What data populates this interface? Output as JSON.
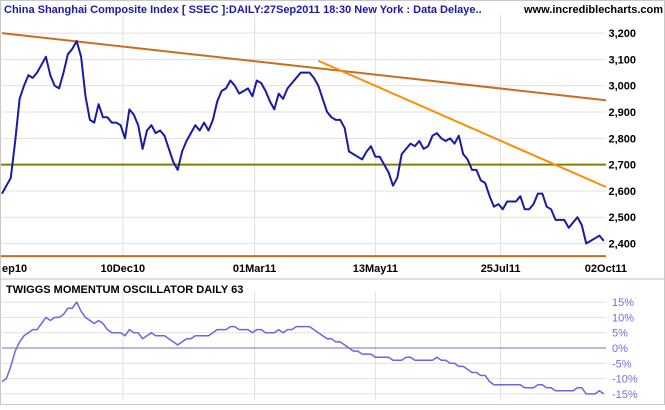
{
  "header": {
    "title": "China Shanghai Composite Index [ SSEC ]:DAILY:27Sep2011 18:30 New York : Data Delaye..",
    "watermark": "www.incrediblecharts.com"
  },
  "chart_data": [
    {
      "type": "line",
      "title": "China Shanghai Composite Index [ SSEC ]:DAILY:27Sep2011 18:30 New York : Data Delaye..",
      "x_tick_labels": [
        "ep10",
        "10Dec10",
        "01Mar11",
        "13May11",
        "25Jul11",
        "02Oct11"
      ],
      "y_tick_labels": [
        "3,200",
        "3,100",
        "3,000",
        "2,900",
        "2,800",
        "2,700",
        "2,600",
        "2,500",
        "2,400"
      ],
      "ylim": [
        2345,
        3250
      ],
      "x_range_trading_days": [
        0,
        275
      ],
      "grid": true,
      "series": [
        {
          "color": "#1a1aa6",
          "x": [
            0,
            2,
            4,
            6,
            8,
            10,
            12,
            14,
            16,
            18,
            20,
            22,
            24,
            26,
            28,
            30,
            32,
            34,
            36,
            38,
            40,
            42,
            44,
            46,
            48,
            50,
            52,
            54,
            56,
            58,
            60,
            62,
            64,
            66,
            68,
            70,
            72,
            74,
            76,
            78,
            80,
            82,
            84,
            86,
            88,
            90,
            92,
            94,
            96,
            98,
            100,
            102,
            104,
            106,
            108,
            110,
            112,
            114,
            116,
            118,
            120,
            122,
            124,
            126,
            128,
            130,
            132,
            134,
            136,
            138,
            140,
            142,
            144,
            146,
            148,
            150,
            152,
            154,
            156,
            158,
            160,
            162,
            164,
            166,
            168,
            170,
            172,
            174,
            176,
            178,
            180,
            182,
            184,
            186,
            188,
            190,
            192,
            194,
            196,
            198,
            200,
            202,
            204,
            206,
            208,
            210,
            212,
            214,
            216,
            218,
            220,
            222,
            224,
            226,
            228,
            230,
            232,
            234,
            236,
            238,
            240,
            242,
            244,
            246,
            248,
            250,
            252,
            254,
            256,
            258,
            260,
            262,
            264,
            266,
            268,
            270,
            272,
            274
          ],
          "values": [
            2590,
            2620,
            2650,
            2790,
            2950,
            3000,
            3040,
            3030,
            3050,
            3080,
            3110,
            3040,
            3000,
            2990,
            3050,
            3120,
            3140,
            3170,
            3110,
            2960,
            2870,
            2860,
            2930,
            2880,
            2880,
            2860,
            2860,
            2850,
            2800,
            2910,
            2890,
            2850,
            2760,
            2830,
            2850,
            2820,
            2830,
            2810,
            2760,
            2710,
            2680,
            2750,
            2790,
            2820,
            2850,
            2830,
            2860,
            2830,
            2870,
            2940,
            2980,
            2990,
            3020,
            3000,
            2970,
            2980,
            2990,
            2960,
            3020,
            3010,
            2980,
            2940,
            2910,
            2970,
            2950,
            2990,
            3010,
            3030,
            3050,
            3050,
            3050,
            3030,
            3000,
            2950,
            2900,
            2880,
            2870,
            2870,
            2840,
            2750,
            2740,
            2730,
            2720,
            2750,
            2770,
            2730,
            2730,
            2700,
            2670,
            2620,
            2650,
            2740,
            2760,
            2780,
            2770,
            2790,
            2760,
            2770,
            2810,
            2820,
            2800,
            2790,
            2800,
            2780,
            2810,
            2740,
            2720,
            2680,
            2680,
            2640,
            2630,
            2580,
            2540,
            2550,
            2530,
            2560,
            2560,
            2560,
            2580,
            2530,
            2530,
            2550,
            2590,
            2590,
            2540,
            2530,
            2490,
            2490,
            2490,
            2460,
            2480,
            2500,
            2470,
            2400,
            2410,
            2420,
            2430,
            2410
          ]
        }
      ],
      "reference_lines": [
        {
          "type": "horizontal",
          "y": 2700,
          "color": "#808000"
        },
        {
          "type": "horizontal",
          "y": 2352,
          "color": "#c86e1e"
        },
        {
          "type": "trend",
          "points": [
            [
              0,
              3200
            ],
            [
              275,
              2945
            ]
          ],
          "color": "#c86e1e"
        },
        {
          "type": "trend",
          "points": [
            [
              144,
              3095
            ],
            [
              275,
              2615
            ]
          ],
          "color": "#ff8c00"
        }
      ]
    },
    {
      "type": "line",
      "title": "TWIGGS MOMENTUM OSCILLATOR DAILY 63",
      "y_tick_labels": [
        "15%",
        "10%",
        "5%",
        "0%",
        "-5%",
        "-10%",
        "-15%"
      ],
      "ylim": [
        -17,
        17
      ],
      "grid": true,
      "series": [
        {
          "color": "#6868e0",
          "x": [
            0,
            2,
            4,
            6,
            8,
            10,
            12,
            14,
            16,
            18,
            20,
            22,
            24,
            26,
            28,
            30,
            32,
            34,
            36,
            38,
            40,
            42,
            44,
            46,
            48,
            50,
            52,
            54,
            56,
            58,
            60,
            62,
            64,
            66,
            68,
            70,
            72,
            74,
            76,
            78,
            80,
            82,
            84,
            86,
            88,
            90,
            92,
            94,
            96,
            98,
            100,
            102,
            104,
            106,
            108,
            110,
            112,
            114,
            116,
            118,
            120,
            122,
            124,
            126,
            128,
            130,
            132,
            134,
            136,
            138,
            140,
            142,
            144,
            146,
            148,
            150,
            152,
            154,
            156,
            158,
            160,
            162,
            164,
            166,
            168,
            170,
            172,
            174,
            176,
            178,
            180,
            182,
            184,
            186,
            188,
            190,
            192,
            194,
            196,
            198,
            200,
            202,
            204,
            206,
            208,
            210,
            212,
            214,
            216,
            218,
            220,
            222,
            224,
            226,
            228,
            230,
            232,
            234,
            236,
            238,
            240,
            242,
            244,
            246,
            248,
            250,
            252,
            254,
            256,
            258,
            260,
            262,
            264,
            266,
            268,
            270,
            272,
            274
          ],
          "values": [
            -11,
            -10,
            -6,
            -1,
            2,
            4,
            5,
            6,
            6,
            8,
            10,
            9,
            10,
            10,
            11,
            13,
            13,
            15,
            12,
            10,
            9,
            8,
            9,
            8,
            6,
            5,
            5,
            5,
            4,
            6,
            5,
            5,
            3,
            4,
            5,
            4,
            4,
            4,
            3,
            2,
            1,
            2,
            3,
            3,
            4,
            4,
            4,
            4,
            5,
            6,
            6,
            6,
            7,
            7,
            6,
            6,
            6,
            5,
            6,
            6,
            5,
            5,
            5,
            6,
            5,
            6,
            6,
            7,
            7,
            7,
            7,
            6,
            5,
            4,
            3,
            3,
            2,
            2,
            1,
            0,
            -1,
            -1,
            -2,
            -2,
            -2,
            -3,
            -3,
            -3,
            -3,
            -4,
            -4,
            -4,
            -3,
            -3,
            -4,
            -4,
            -4,
            -4,
            -4,
            -3,
            -4,
            -4,
            -5,
            -5,
            -6,
            -6,
            -7,
            -8,
            -8,
            -9,
            -9,
            -11,
            -12,
            -12,
            -12,
            -12,
            -12,
            -12,
            -12,
            -13,
            -13,
            -13,
            -12,
            -12,
            -13,
            -13,
            -14,
            -14,
            -14,
            -14,
            -14,
            -13,
            -13,
            -15,
            -15,
            -15,
            -14,
            -15
          ]
        }
      ]
    }
  ],
  "colors": {
    "background": "#ffffff",
    "grid": "#e0e0e0",
    "price_line": "#1a1aa6",
    "oscillator_line": "#6868e0",
    "support_line": "#808000",
    "trend_line": "#c86e1e",
    "trend_line_2": "#ff8c00",
    "axis_text": "#000000",
    "oscillator_axis_text": "#7070e0",
    "title_text": "#1a1aa6"
  }
}
